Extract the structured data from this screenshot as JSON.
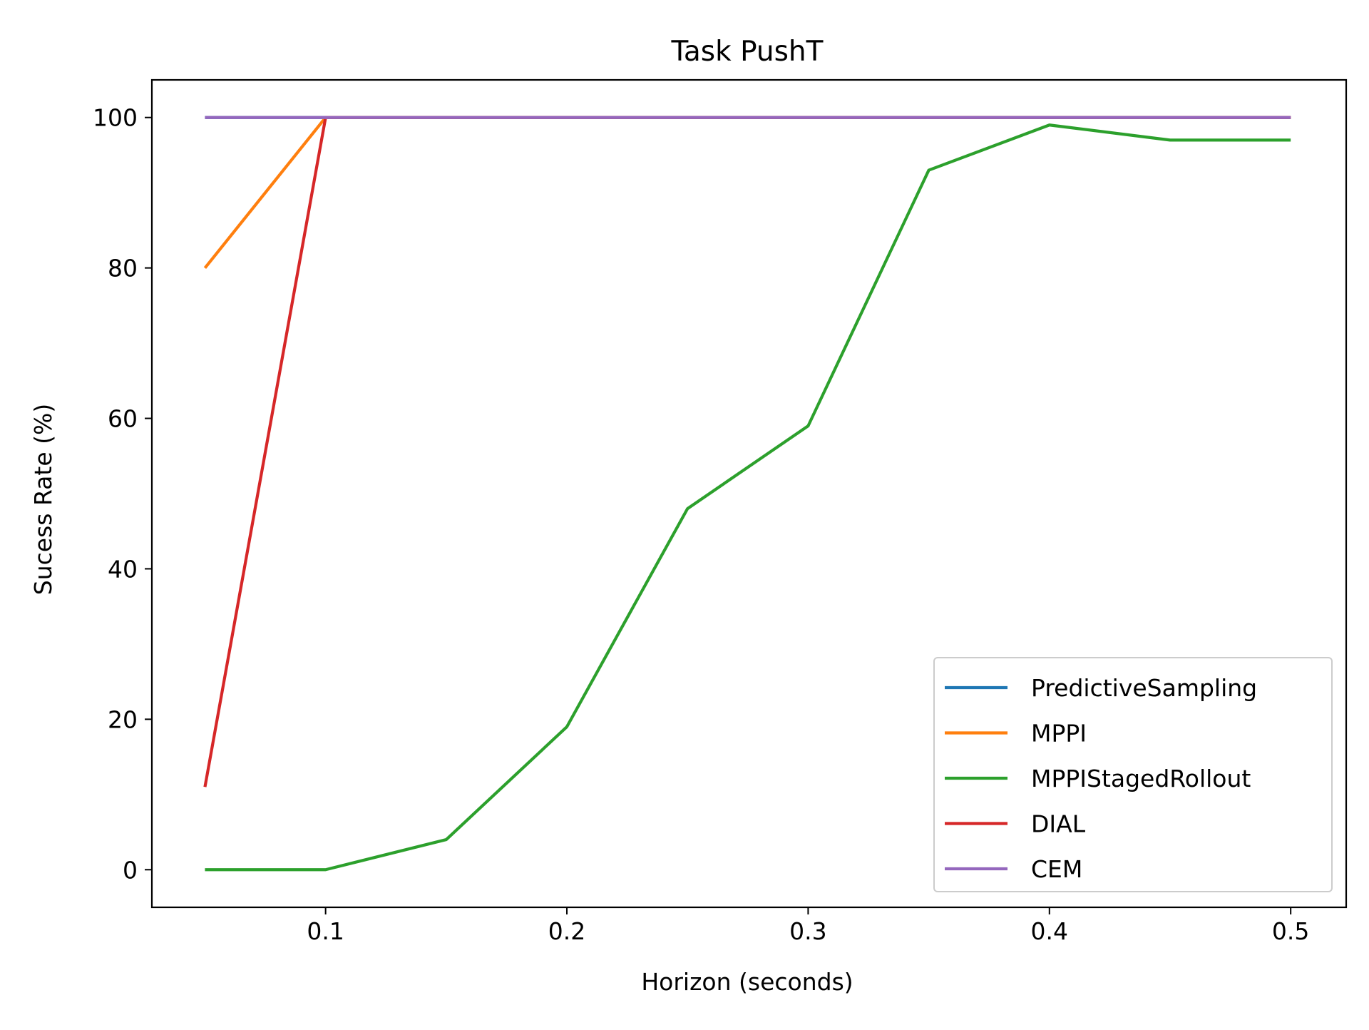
{
  "chart_data": {
    "type": "line",
    "title": "Task PushT",
    "xlabel": "Horizon (seconds)",
    "ylabel": "Sucess Rate (%)",
    "xlim": [
      0.028,
      0.523
    ],
    "ylim": [
      -5,
      105
    ],
    "xticks": [
      0.1,
      0.2,
      0.3,
      0.4,
      0.5
    ],
    "xtick_labels": [
      "0.1",
      "0.2",
      "0.3",
      "0.4",
      "0.5"
    ],
    "yticks": [
      0,
      20,
      40,
      60,
      80,
      100
    ],
    "ytick_labels": [
      "0",
      "20",
      "40",
      "60",
      "80",
      "100"
    ],
    "grid": false,
    "legend_position": "lower-right",
    "x": [
      0.05,
      0.1,
      0.15,
      0.2,
      0.25,
      0.3,
      0.35,
      0.4,
      0.45,
      0.5
    ],
    "series": [
      {
        "name": "PredictiveSampling",
        "color": "#1f77b4",
        "values": [
          100,
          100,
          100,
          100,
          100,
          100,
          100,
          100,
          100,
          100
        ]
      },
      {
        "name": "MPPI",
        "color": "#ff7f0e",
        "values": [
          80,
          100,
          100,
          100,
          100,
          100,
          100,
          100,
          100,
          100
        ]
      },
      {
        "name": "MPPIStagedRollout",
        "color": "#2ca02c",
        "values": [
          0,
          0,
          4,
          19,
          48,
          59,
          93,
          99,
          97,
          97
        ]
      },
      {
        "name": "DIAL",
        "color": "#d62728",
        "values": [
          11,
          100,
          100,
          100,
          100,
          100,
          100,
          100,
          100,
          100
        ]
      },
      {
        "name": "CEM",
        "color": "#9467bd",
        "values": [
          100,
          100,
          100,
          100,
          100,
          100,
          100,
          100,
          100,
          100
        ]
      }
    ]
  }
}
